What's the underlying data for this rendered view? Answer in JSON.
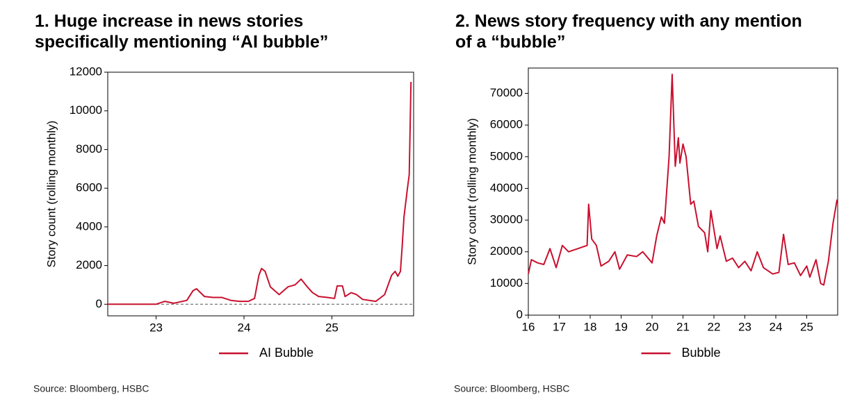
{
  "chart_data": [
    {
      "type": "line",
      "title": [
        "1. Huge increase in news stories",
        "specifically mentioning “AI bubble”"
      ],
      "ylabel": "Story count (rolling monthly)",
      "source": "Source: Bloomberg, HSBC",
      "x": [
        22.45,
        23.0,
        23.1,
        23.2,
        23.35,
        23.42,
        23.46,
        23.55,
        23.65,
        23.75,
        23.85,
        23.95,
        24.05,
        24.12,
        24.17,
        24.2,
        24.24,
        24.3,
        24.4,
        24.5,
        24.58,
        24.65,
        24.72,
        24.78,
        24.85,
        24.95,
        25.03,
        25.06,
        25.12,
        25.15,
        25.22,
        25.28,
        25.35,
        25.5,
        25.6,
        25.68,
        25.72,
        25.75,
        25.78,
        25.8,
        25.82,
        25.86,
        25.88,
        25.9
      ],
      "series": [
        {
          "name": "AI Bubble",
          "color": "#c8102e",
          "values": [
            0,
            0,
            150,
            50,
            200,
            700,
            800,
            400,
            350,
            350,
            200,
            150,
            150,
            300,
            1500,
            1850,
            1700,
            900,
            500,
            900,
            1000,
            1300,
            900,
            600,
            400,
            350,
            300,
            950,
            950,
            400,
            600,
            500,
            250,
            150,
            500,
            1500,
            1700,
            1450,
            1700,
            3000,
            4500,
            6000,
            6700,
            11500
          ]
        }
      ],
      "hline": 0,
      "xlim": [
        22.45,
        25.93
      ],
      "xticks": [
        23,
        24,
        25
      ],
      "ylim": [
        -600,
        12000
      ],
      "yticks": [
        0,
        2000,
        4000,
        6000,
        8000,
        10000,
        12000
      ]
    },
    {
      "type": "line",
      "title": [
        "2. News story frequency with any mention",
        "of a “bubble”"
      ],
      "ylabel": "Story count (rolling monthly)",
      "source": "Source: Bloomberg, HSBC",
      "x": [
        16,
        16.1,
        16.3,
        16.5,
        16.7,
        16.8,
        16.9,
        17.1,
        17.3,
        17.6,
        17.9,
        17.95,
        18.05,
        18.2,
        18.35,
        18.6,
        18.8,
        18.95,
        19.2,
        19.5,
        19.7,
        20.0,
        20.15,
        20.3,
        20.4,
        20.55,
        20.65,
        20.75,
        20.85,
        20.9,
        21.0,
        21.1,
        21.25,
        21.35,
        21.5,
        21.7,
        21.8,
        21.9,
        22.1,
        22.2,
        22.4,
        22.6,
        22.8,
        23.0,
        23.2,
        23.4,
        23.6,
        23.9,
        24.1,
        24.25,
        24.4,
        24.6,
        24.8,
        25.0,
        25.1,
        25.3,
        25.45,
        25.55,
        25.7,
        25.85,
        25.98
      ],
      "series": [
        {
          "name": "Bubble",
          "color": "#c8102e",
          "values": [
            13000,
            17500,
            16500,
            16000,
            21000,
            18000,
            15000,
            22000,
            20000,
            21000,
            22000,
            35000,
            24000,
            22000,
            15500,
            17000,
            20000,
            14500,
            19000,
            18500,
            20000,
            16500,
            25000,
            31000,
            29000,
            50000,
            76000,
            47000,
            56000,
            48000,
            54000,
            50000,
            35000,
            36000,
            28000,
            26000,
            20000,
            33000,
            21000,
            25000,
            17000,
            18000,
            15000,
            17000,
            14000,
            20000,
            15000,
            13000,
            13500,
            25500,
            16000,
            16500,
            12500,
            15500,
            12000,
            17500,
            10000,
            9500,
            17000,
            29000,
            36500
          ]
        }
      ],
      "xlim": [
        16,
        26
      ],
      "xticks": [
        16,
        17,
        18,
        19,
        20,
        21,
        22,
        23,
        24,
        25
      ],
      "ylim": [
        0,
        78000
      ],
      "yticks": [
        0,
        10000,
        20000,
        30000,
        40000,
        50000,
        60000,
        70000
      ]
    }
  ]
}
